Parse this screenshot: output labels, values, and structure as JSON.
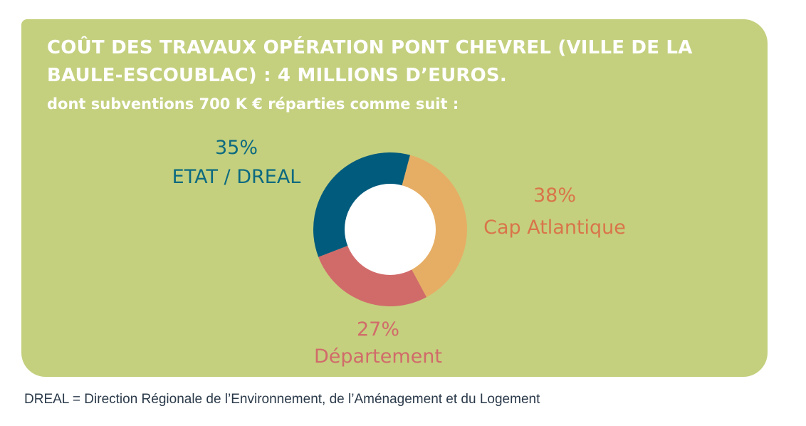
{
  "header": {
    "title": "COÛT DES TRAVAUX OPÉRATION PONT CHEVREL (VILLE DE LA BAULE-ESCOUBLAC) : 4 MILLIONS D’EUROS.",
    "subtitle": "dont subventions 700 K € réparties comme suit :"
  },
  "chart_data": {
    "type": "pie",
    "donut": true,
    "slices": [
      {
        "label": "Cap Atlantique",
        "percent_label": "38%",
        "value": 38,
        "color": "#e6ae65",
        "label_color": "#d9744a"
      },
      {
        "label": "Département",
        "percent_label": "27%",
        "value": 27,
        "color": "#d16b6a",
        "label_color": "#d16b6a"
      },
      {
        "label": "ETAT / DREAL",
        "percent_label": "35%",
        "value": 35,
        "color": "#015b7d",
        "label_color": "#0d6a80"
      }
    ],
    "start_angle_deg": 15,
    "hole_color": "#ffffff"
  },
  "footnote": "DREAL = Direction Régionale de l’Environnement, de l’Aménagement et du Logement",
  "colors": {
    "panel": "#c4d07e",
    "title_text": "#ffffff"
  }
}
